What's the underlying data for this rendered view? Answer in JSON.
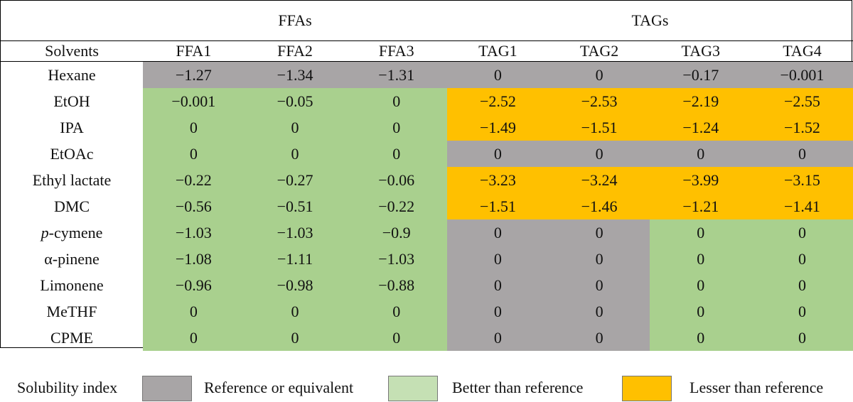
{
  "colors": {
    "reference": "#a8a5a6",
    "better": "#a9d08e",
    "lesser": "#ffc000",
    "legend_better": "#c5e0b4"
  },
  "table": {
    "groups": [
      {
        "label": "FFAs",
        "span": 3
      },
      {
        "label": "TAGs",
        "span": 4
      }
    ],
    "columns": [
      "Solvents",
      "FFA1",
      "FFA2",
      "FFA3",
      "TAG1",
      "TAG2",
      "TAG3",
      "TAG4"
    ],
    "rows": [
      {
        "solvent": "Hexane",
        "italic_prefix": "",
        "values": [
          "−1.27",
          "−1.34",
          "−1.31",
          "0",
          "0",
          "−0.17",
          "−0.001"
        ],
        "status": [
          "ref",
          "ref",
          "ref",
          "ref",
          "ref",
          "ref",
          "ref"
        ]
      },
      {
        "solvent": "EtOH",
        "italic_prefix": "",
        "values": [
          "−0.001",
          "−0.05",
          "0",
          "−2.52",
          "−2.53",
          "−2.19",
          "−2.55"
        ],
        "status": [
          "better",
          "better",
          "better",
          "lesser",
          "lesser",
          "lesser",
          "lesser"
        ]
      },
      {
        "solvent": "IPA",
        "italic_prefix": "",
        "values": [
          "0",
          "0",
          "0",
          "−1.49",
          "−1.51",
          "−1.24",
          "−1.52"
        ],
        "status": [
          "better",
          "better",
          "better",
          "lesser",
          "lesser",
          "lesser",
          "lesser"
        ]
      },
      {
        "solvent": "EtOAc",
        "italic_prefix": "",
        "values": [
          "0",
          "0",
          "0",
          "0",
          "0",
          "0",
          "0"
        ],
        "status": [
          "better",
          "better",
          "better",
          "ref",
          "ref",
          "ref",
          "ref"
        ]
      },
      {
        "solvent": "Ethyl lactate",
        "italic_prefix": "",
        "values": [
          "−0.22",
          "−0.27",
          "−0.06",
          "−3.23",
          "−3.24",
          "−3.99",
          "−3.15"
        ],
        "status": [
          "better",
          "better",
          "better",
          "lesser",
          "lesser",
          "lesser",
          "lesser"
        ]
      },
      {
        "solvent": "DMC",
        "italic_prefix": "",
        "values": [
          "−0.56",
          "−0.51",
          "−0.22",
          "−1.51",
          "−1.46",
          "−1.21",
          "−1.41"
        ],
        "status": [
          "better",
          "better",
          "better",
          "lesser",
          "lesser",
          "lesser",
          "lesser"
        ]
      },
      {
        "solvent": "-cymene",
        "italic_prefix": "p",
        "values": [
          "−1.03",
          "−1.03",
          "−0.9",
          "0",
          "0",
          "0",
          "0"
        ],
        "status": [
          "better",
          "better",
          "better",
          "ref",
          "ref",
          "better",
          "better"
        ]
      },
      {
        "solvent": "α-pinene",
        "italic_prefix": "",
        "values": [
          "−1.08",
          "−1.11",
          "−1.03",
          "0",
          "0",
          "0",
          "0"
        ],
        "status": [
          "better",
          "better",
          "better",
          "ref",
          "ref",
          "better",
          "better"
        ]
      },
      {
        "solvent": "Limonene",
        "italic_prefix": "",
        "values": [
          "−0.96",
          "−0.98",
          "−0.88",
          "0",
          "0",
          "0",
          "0"
        ],
        "status": [
          "better",
          "better",
          "better",
          "ref",
          "ref",
          "better",
          "better"
        ]
      },
      {
        "solvent": "MeTHF",
        "italic_prefix": "",
        "values": [
          "0",
          "0",
          "0",
          "0",
          "0",
          "0",
          "0"
        ],
        "status": [
          "better",
          "better",
          "better",
          "ref",
          "ref",
          "better",
          "better"
        ]
      },
      {
        "solvent": "CPME",
        "italic_prefix": "",
        "values": [
          "0",
          "0",
          "0",
          "0",
          "0",
          "0",
          "0"
        ],
        "status": [
          "better",
          "better",
          "better",
          "ref",
          "ref",
          "better",
          "better"
        ]
      }
    ]
  },
  "legend": {
    "title": "Solubility index",
    "items": [
      {
        "key": "ref",
        "label": "Reference or equivalent"
      },
      {
        "key": "better",
        "label": "Better than reference"
      },
      {
        "key": "lesser",
        "label": "Lesser than reference"
      }
    ]
  }
}
